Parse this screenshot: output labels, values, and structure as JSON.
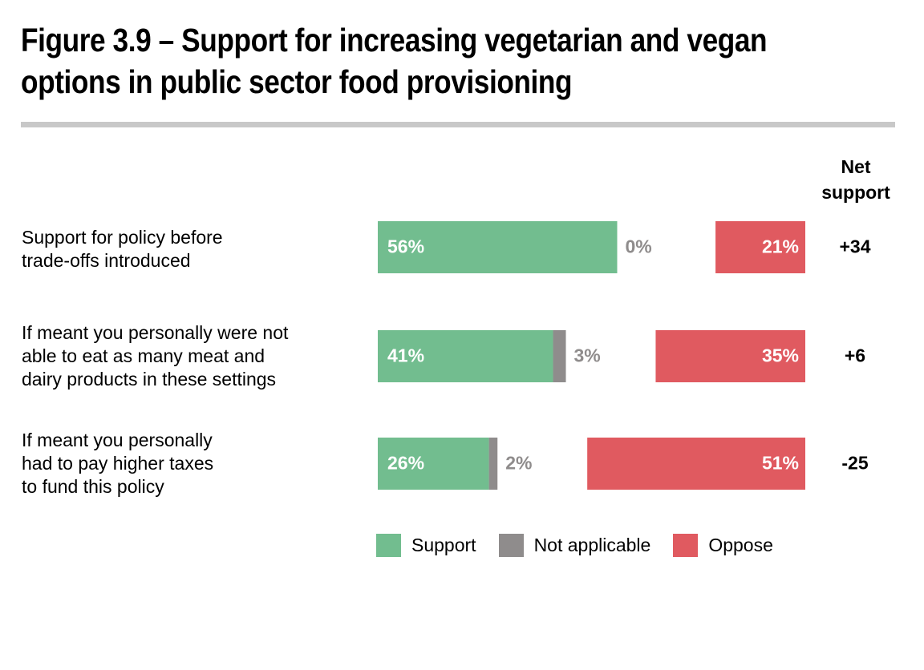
{
  "title": "Figure 3.9 – Support for increasing vegetarian and vegan options in public sector food provisioning",
  "chart_data": {
    "type": "bar",
    "subtype": "diverging-stacked-horizontal",
    "net_header": "Net support",
    "categories": [
      "Support for policy before\ntrade-offs introduced",
      "If meant you personally were not\nable to eat as many meat and\ndairy products in these settings",
      "If meant you personally\nhad to pay higher taxes\nto fund this policy"
    ],
    "series": [
      {
        "name": "Support",
        "color": "#72bd8f",
        "values": [
          56,
          41,
          26
        ],
        "labels": [
          "56%",
          "41%",
          "26%"
        ]
      },
      {
        "name": "Not applicable",
        "color": "#8f8c8c",
        "values": [
          0,
          3,
          2
        ],
        "labels": [
          "0%",
          "3%",
          "2%"
        ]
      },
      {
        "name": "Oppose",
        "color": "#e05a60",
        "values": [
          21,
          35,
          51
        ],
        "labels": [
          "21%",
          "35%",
          "51%"
        ]
      }
    ],
    "net_support": [
      "+34",
      "+6",
      "-25"
    ],
    "legend_position": "bottom",
    "grid": false
  }
}
